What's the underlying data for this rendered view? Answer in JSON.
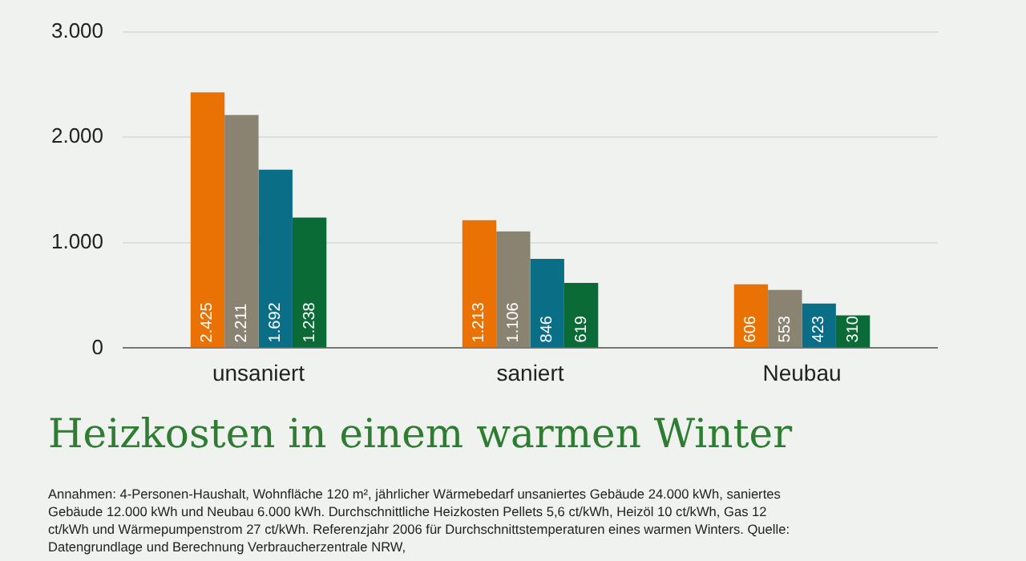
{
  "chart_data": {
    "type": "bar",
    "title": "Heizkosten in einem warmen Winter",
    "categories": [
      "unsaniert",
      "saniert",
      "Neubau"
    ],
    "series": [
      {
        "color": "#ea7103",
        "values": [
          2425,
          1213,
          606
        ],
        "value_labels": [
          "2.425",
          "1.213",
          "606"
        ]
      },
      {
        "color": "#8a8372",
        "values": [
          2211,
          1106,
          553
        ],
        "value_labels": [
          "2.211",
          "1.106",
          "553"
        ]
      },
      {
        "color": "#0b6e87",
        "values": [
          1692,
          846,
          423
        ],
        "value_labels": [
          "1.692",
          "846",
          "423"
        ]
      },
      {
        "color": "#0a6b36",
        "values": [
          1238,
          619,
          310
        ],
        "value_labels": [
          "1.238",
          "619",
          "310"
        ]
      }
    ],
    "ylim": [
      0,
      3000
    ],
    "yticks": [
      {
        "value": 0,
        "label": "0"
      },
      {
        "value": 1000,
        "label": "1.000"
      },
      {
        "value": 2000,
        "label": "2.000"
      },
      {
        "value": 3000,
        "label": "3.000"
      }
    ],
    "grid": "y",
    "legend": false,
    "annotations": [
      "Annahmen: 4-Personen-Haushalt, Wohnfläche 120 m², jährlicher Wärmebedarf unsaniertes Gebäude 24.000 kWh, saniertes Gebäude 12.000 kWh und Neubau 6.000 kWh. Durchschnittliche Heizkosten Pellets 5,6 ct/kWh, Heizöl 10 ct/kWh, Gas 12 ct/kWh und Wärmepumpenstrom 27 ct/kWh. Referenzjahr 2006 für Durchschnittstemperaturen eines warmen Winters. Quelle: Datengrundlage und Berechnung Verbraucherzentrale NRW,"
    ]
  }
}
